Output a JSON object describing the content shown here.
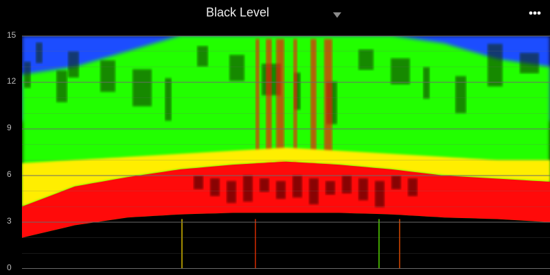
{
  "header": {
    "title": "Black Level",
    "dropdown_icon": "caret-down-icon",
    "more_icon": "more-horizontal-icon"
  },
  "chart_data": {
    "type": "heatmap",
    "title": "Black Level",
    "xlabel": "",
    "ylabel": "",
    "ylim": [
      0,
      15
    ],
    "y_ticks": [
      "15",
      "12",
      "9",
      "6",
      "3",
      "0"
    ],
    "grid": true,
    "colorscale": [
      "#000000",
      "#ff0000",
      "#ffff00",
      "#00ff00",
      "#0044ff"
    ],
    "profile": {
      "description_values": "red band upper edge (y units) across x, 0..1 normalized positions",
      "x": [
        0,
        0.1,
        0.2,
        0.3,
        0.4,
        0.5,
        0.6,
        0.7,
        0.8,
        0.9,
        1.0
      ],
      "red_top": [
        4.0,
        5.3,
        5.9,
        6.4,
        6.7,
        6.9,
        6.7,
        6.4,
        6.0,
        5.8,
        5.6
      ],
      "red_bottom": [
        2.0,
        2.8,
        3.3,
        3.5,
        3.6,
        3.6,
        3.6,
        3.5,
        3.3,
        3.2,
        3.0
      ],
      "yellow_top": [
        6.8,
        7.0,
        7.2,
        7.4,
        7.6,
        7.8,
        7.6,
        7.4,
        7.2,
        7.0,
        7.0
      ],
      "green_top": [
        12.5,
        13.0,
        14.0,
        15.0,
        15.0,
        15.0,
        15.0,
        15.0,
        14.5,
        13.5,
        13.0
      ]
    },
    "colors": {
      "blue": "#1a4dff",
      "green": "#22ff00",
      "yellow": "#ffee00",
      "red": "#ff0a0a",
      "grid": "#6a6a6a",
      "bg": "#000000"
    }
  }
}
